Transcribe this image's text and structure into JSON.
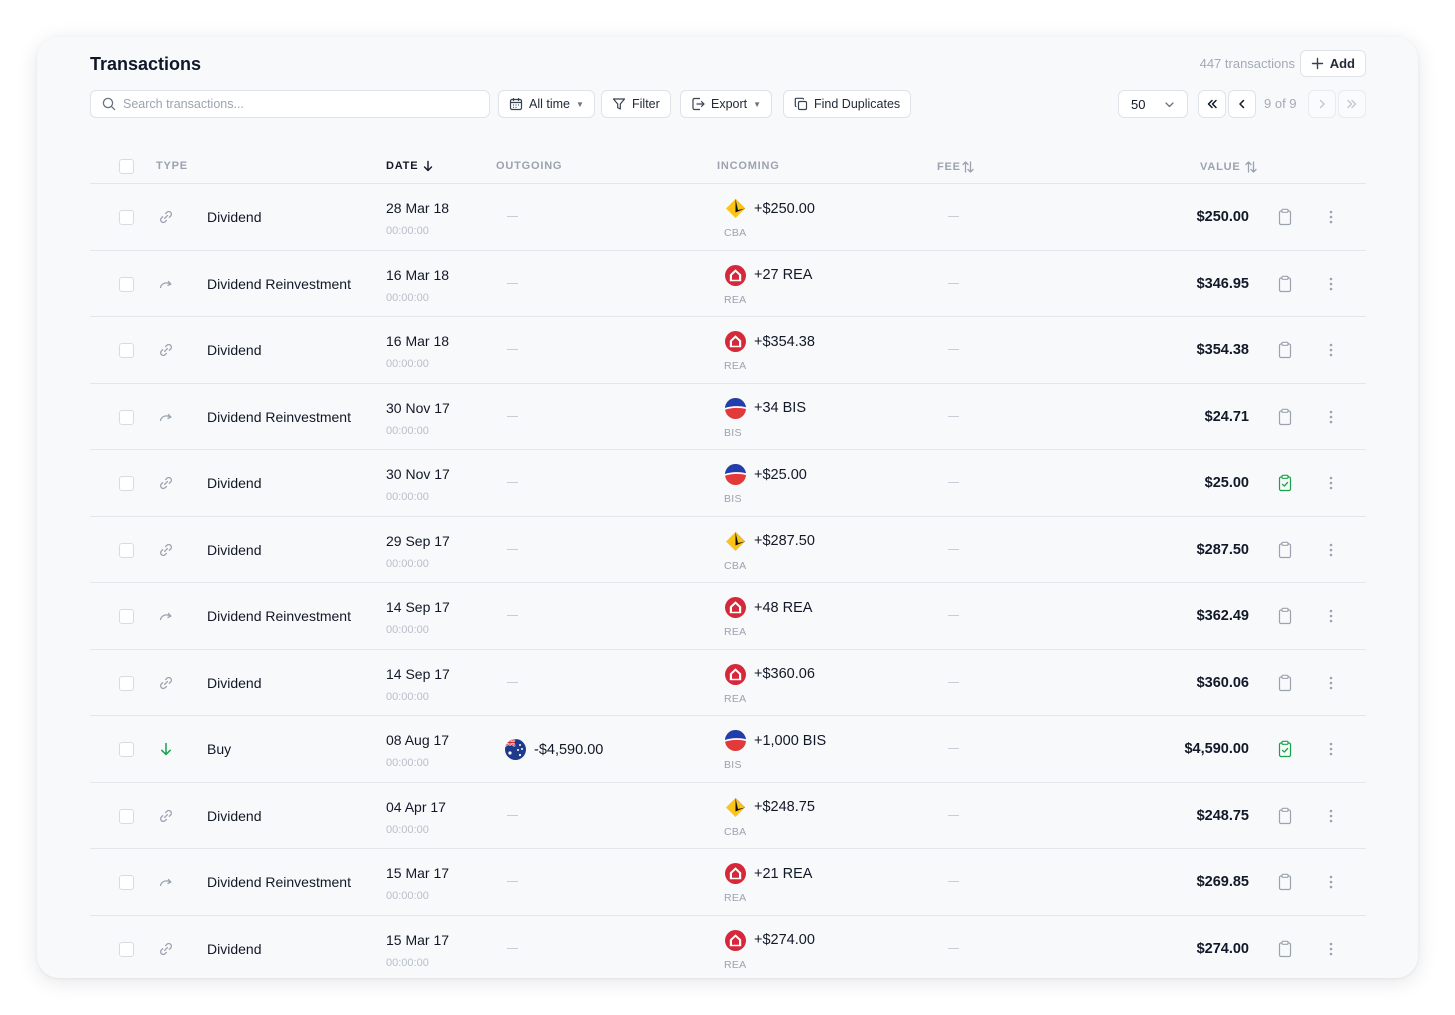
{
  "header": {
    "title": "Transactions",
    "count": "447 transactions",
    "add_label": "Add"
  },
  "toolbar": {
    "search_placeholder": "Search transactions...",
    "alltime_label": "All time",
    "filter_label": "Filter",
    "export_label": "Export",
    "duplicates_label": "Find Duplicates",
    "page_size": "50",
    "page_info": "9 of 9"
  },
  "columns": {
    "type": "TYPE",
    "date": "DATE",
    "outgoing": "OUTGOING",
    "incoming": "INCOMING",
    "fee": "FEE",
    "value": "VALUE"
  },
  "colors": {
    "accent_green": "#16a34a",
    "cba_yellow": "#fcc419",
    "rea_red": "#d6283b",
    "bis_blue": "#1e40af"
  },
  "rows": [
    {
      "type": "Dividend",
      "icon": "link-icon",
      "date": "28 Mar 18",
      "time": "00:00:00",
      "outgoing": "",
      "incoming": "+$250.00",
      "incoming_sub": "CBA",
      "logo": "cba",
      "value": "$250.00",
      "checked": false
    },
    {
      "type": "Dividend Reinvestment",
      "icon": "redo-arrow-icon",
      "date": "16 Mar 18",
      "time": "00:00:00",
      "outgoing": "",
      "incoming": "+27 REA",
      "incoming_sub": "REA",
      "logo": "rea",
      "value": "$346.95",
      "checked": false
    },
    {
      "type": "Dividend",
      "icon": "link-icon",
      "date": "16 Mar 18",
      "time": "00:00:00",
      "outgoing": "",
      "incoming": "+$354.38",
      "incoming_sub": "REA",
      "logo": "rea",
      "value": "$354.38",
      "checked": false
    },
    {
      "type": "Dividend Reinvestment",
      "icon": "redo-arrow-icon",
      "date": "30 Nov 17",
      "time": "00:00:00",
      "outgoing": "",
      "incoming": "+34 BIS",
      "incoming_sub": "BIS",
      "logo": "bis",
      "value": "$24.71",
      "checked": false
    },
    {
      "type": "Dividend",
      "icon": "link-icon",
      "date": "30 Nov 17",
      "time": "00:00:00",
      "outgoing": "",
      "incoming": "+$25.00",
      "incoming_sub": "BIS",
      "logo": "bis",
      "value": "$25.00",
      "checked": true
    },
    {
      "type": "Dividend",
      "icon": "link-icon",
      "date": "29 Sep 17",
      "time": "00:00:00",
      "outgoing": "",
      "incoming": "+$287.50",
      "incoming_sub": "CBA",
      "logo": "cba",
      "value": "$287.50",
      "checked": false
    },
    {
      "type": "Dividend Reinvestment",
      "icon": "redo-arrow-icon",
      "date": "14 Sep 17",
      "time": "00:00:00",
      "outgoing": "",
      "incoming": "+48 REA",
      "incoming_sub": "REA",
      "logo": "rea",
      "value": "$362.49",
      "checked": false
    },
    {
      "type": "Dividend",
      "icon": "link-icon",
      "date": "14 Sep 17",
      "time": "00:00:00",
      "outgoing": "",
      "incoming": "+$360.06",
      "incoming_sub": "REA",
      "logo": "rea",
      "value": "$360.06",
      "checked": false
    },
    {
      "type": "Buy",
      "icon": "arrow-down-icon",
      "date": "08 Aug 17",
      "time": "00:00:00",
      "outgoing": "-$4,590.00",
      "outgoing_logo": "aud",
      "incoming": "+1,000 BIS",
      "incoming_sub": "BIS",
      "logo": "bis",
      "value": "$4,590.00",
      "checked": true
    },
    {
      "type": "Dividend",
      "icon": "link-icon",
      "date": "04 Apr 17",
      "time": "00:00:00",
      "outgoing": "",
      "incoming": "+$248.75",
      "incoming_sub": "CBA",
      "logo": "cba",
      "value": "$248.75",
      "checked": false
    },
    {
      "type": "Dividend Reinvestment",
      "icon": "redo-arrow-icon",
      "date": "15 Mar 17",
      "time": "00:00:00",
      "outgoing": "",
      "incoming": "+21 REA",
      "incoming_sub": "REA",
      "logo": "rea",
      "value": "$269.85",
      "checked": false
    },
    {
      "type": "Dividend",
      "icon": "link-icon",
      "date": "15 Mar 17",
      "time": "00:00:00",
      "outgoing": "",
      "incoming": "+$274.00",
      "incoming_sub": "REA",
      "logo": "rea",
      "value": "$274.00",
      "checked": false
    }
  ]
}
